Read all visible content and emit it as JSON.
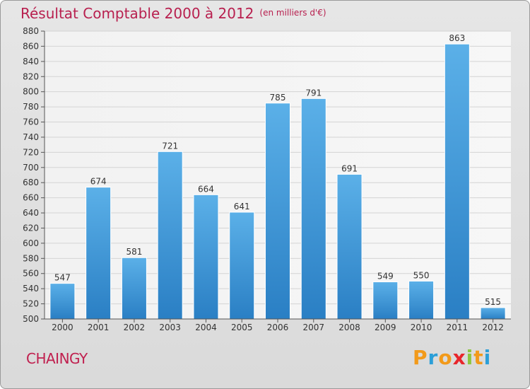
{
  "title": "Résultat Comptable 2000 à 2012",
  "unit_note": "(en milliers d'€)",
  "commune": "CHAINGY",
  "logo": {
    "text": "Proxiti",
    "letters": [
      {
        "ch": "P",
        "color": "#f29a1a"
      },
      {
        "ch": "r",
        "color": "#2b9fd8"
      },
      {
        "ch": "o",
        "color": "#f29a1a"
      },
      {
        "ch": "x",
        "color": "#e8262b"
      },
      {
        "ch": "i",
        "color": "#8dc63f"
      },
      {
        "ch": "t",
        "color": "#f29a1a"
      },
      {
        "ch": "i",
        "color": "#2b9fd8"
      }
    ]
  },
  "colors": {
    "bar_top": "#5bb0e8",
    "bar_bottom": "#2a7fc4",
    "title": "#b8204f"
  },
  "chart_data": {
    "type": "bar",
    "title": "Résultat Comptable 2000 à 2012",
    "xlabel": "",
    "ylabel": "",
    "categories": [
      "2000",
      "2001",
      "2002",
      "2003",
      "2004",
      "2005",
      "2006",
      "2007",
      "2008",
      "2009",
      "2010",
      "2011",
      "2012"
    ],
    "values": [
      547,
      674,
      581,
      721,
      664,
      641,
      785,
      791,
      691,
      549,
      550,
      863,
      515
    ],
    "ylim": [
      500,
      880
    ],
    "yticks": [
      500,
      520,
      540,
      560,
      580,
      600,
      620,
      640,
      660,
      680,
      700,
      720,
      740,
      760,
      780,
      800,
      820,
      840,
      860,
      880
    ],
    "grid": true
  }
}
